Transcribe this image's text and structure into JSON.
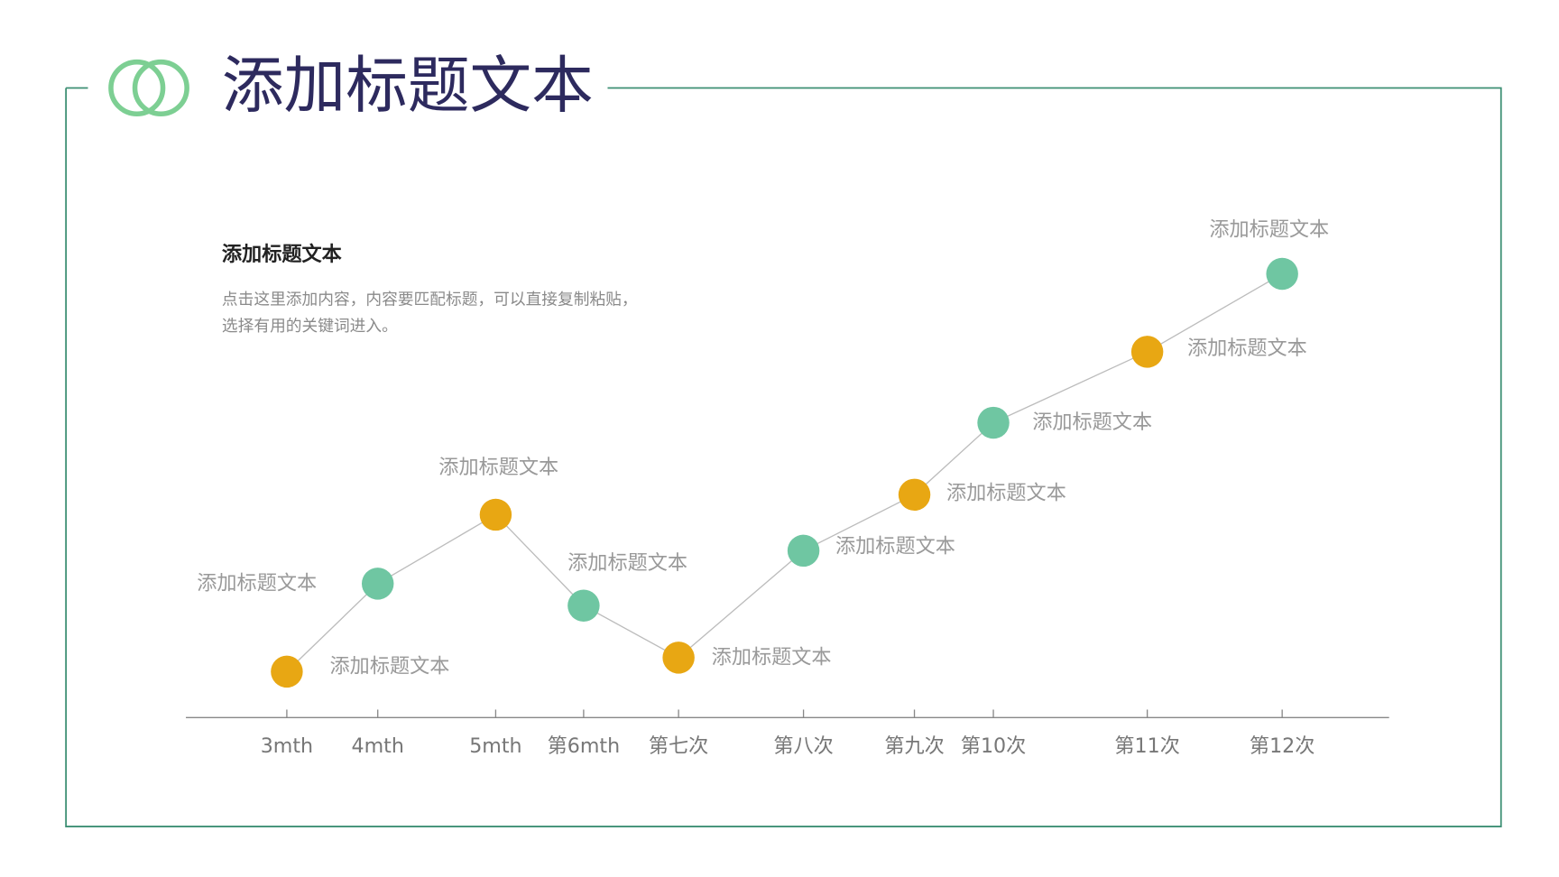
{
  "slide": {
    "title": "添加标题文本",
    "subtitle": "添加标题文本",
    "body": [
      "点击这里添加内容，内容要匹配标题，可以直接复制粘贴，",
      "选择有用的关键词进入。"
    ]
  },
  "chart_data": {
    "type": "line",
    "categories": [
      "3mth",
      "4mth",
      "5mth",
      "第6mth",
      "第七次",
      "第八次",
      "第九次",
      "第10次",
      "第11次",
      "第12次"
    ],
    "values": [
      46,
      134,
      203,
      112,
      60,
      167,
      223,
      295,
      366,
      444
    ],
    "point_labels": [
      "添加标题文本",
      "添加标题文本",
      "添加标题文本",
      "添加标题文本",
      "添加标题文本",
      "添加标题文本",
      "添加标题文本",
      "添加标题文本",
      "添加标题文本",
      "添加标题文本"
    ],
    "point_colors": [
      "#e8a713",
      "#6fc6a2",
      "#e8a713",
      "#6fc6a2",
      "#e8a713",
      "#6fc6a2",
      "#e8a713",
      "#6fc6a2",
      "#e8a713",
      "#6fc6a2"
    ],
    "line_color": "#bcbcbc",
    "ylim": [
      0,
      500
    ]
  }
}
